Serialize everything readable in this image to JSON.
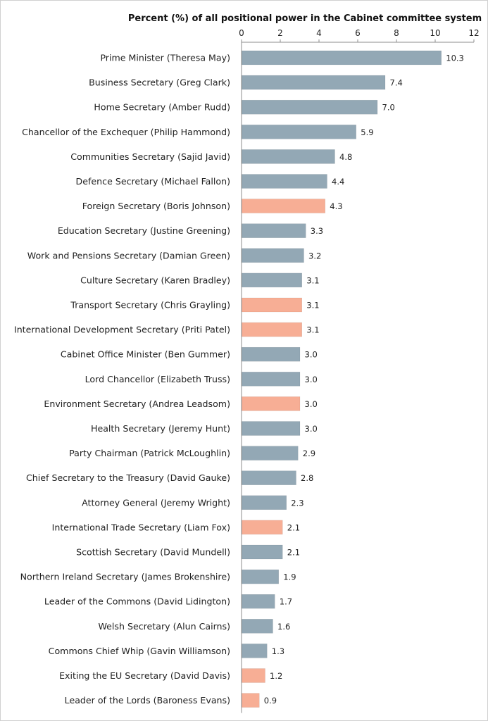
{
  "chart_data": {
    "type": "bar",
    "orientation": "horizontal",
    "title": "Percent (%) of all positional power in the Cabinet committee system",
    "xlim": [
      0,
      12
    ],
    "xticks": [
      0,
      2,
      4,
      6,
      8,
      10,
      12
    ],
    "grid": false,
    "value_labels": true,
    "colors": {
      "default": "#93a8b5",
      "highlight": "#f7ae95",
      "axis": "#8c8c8c"
    },
    "categories": [
      "Prime Minister (Theresa May)",
      "Business Secretary (Greg Clark)",
      "Home Secretary (Amber Rudd)",
      "Chancellor of the Exchequer (Philip Hammond)",
      "Communities Secretary (Sajid Javid)",
      "Defence Secretary (Michael Fallon)",
      "Foreign Secretary (Boris Johnson)",
      "Education Secretary (Justine Greening)",
      "Work and Pensions Secretary (Damian Green)",
      "Culture Secretary (Karen Bradley)",
      "Transport Secretary (Chris Grayling)",
      "International Development Secretary (Priti Patel)",
      "Cabinet Office Minister (Ben Gummer)",
      "Lord Chancellor (Elizabeth Truss)",
      "Environment Secretary (Andrea Leadsom)",
      "Health Secretary (Jeremy Hunt)",
      "Party Chairman (Patrick McLoughlin)",
      "Chief Secretary to the Treasury (David Gauke)",
      "Attorney General (Jeremy Wright)",
      "International Trade Secretary (Liam Fox)",
      "Scottish Secretary (David Mundell)",
      "Northern Ireland Secretary (James Brokenshire)",
      "Leader of the Commons (David Lidington)",
      "Welsh Secretary (Alun Cairns)",
      "Commons Chief Whip (Gavin Williamson)",
      "Exiting the EU Secretary (David Davis)",
      "Leader of the Lords (Baroness Evans)"
    ],
    "values": [
      10.3,
      7.4,
      7.0,
      5.9,
      4.8,
      4.4,
      4.3,
      3.3,
      3.2,
      3.1,
      3.1,
      3.1,
      3.0,
      3.0,
      3.0,
      3.0,
      2.9,
      2.8,
      2.3,
      2.1,
      2.1,
      1.9,
      1.7,
      1.6,
      1.3,
      1.2,
      0.9
    ],
    "value_labels_text": [
      "10.3",
      "7.4",
      "7.0",
      "5.9",
      "4.8",
      "4.4",
      "4.3",
      "3.3",
      "3.2",
      "3.1",
      "3.1",
      "3.1",
      "3.0",
      "3.0",
      "3.0",
      "3.0",
      "2.9",
      "2.8",
      "2.3",
      "2.1",
      "2.1",
      "1.9",
      "1.7",
      "1.6",
      "1.3",
      "1.2",
      "0.9"
    ],
    "highlighted": [
      false,
      false,
      false,
      false,
      false,
      false,
      true,
      false,
      false,
      false,
      true,
      true,
      false,
      false,
      true,
      false,
      false,
      false,
      false,
      true,
      false,
      false,
      false,
      false,
      false,
      true,
      true
    ]
  }
}
